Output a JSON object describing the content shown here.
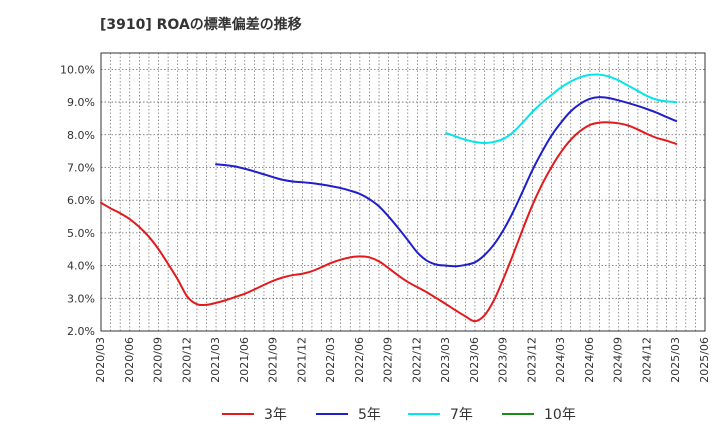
{
  "title": "[3910]  ROAの標準偏差の推移",
  "chart_data": {
    "type": "line",
    "title": "[3910]  ROAの標準偏差の推移",
    "xlabel": "",
    "ylabel": "",
    "ylim": [
      2.0,
      10.5
    ],
    "y_ticks": [
      "2.0%",
      "3.0%",
      "4.0%",
      "5.0%",
      "6.0%",
      "7.0%",
      "8.0%",
      "9.0%",
      "10.0%"
    ],
    "y_tick_values": [
      2,
      3,
      4,
      5,
      6,
      7,
      8,
      9,
      10
    ],
    "x_ticks": [
      "2020/03",
      "2020/06",
      "2020/09",
      "2020/12",
      "2021/03",
      "2021/06",
      "2021/09",
      "2021/12",
      "2022/03",
      "2022/06",
      "2022/09",
      "2022/12",
      "2023/03",
      "2023/06",
      "2023/09",
      "2023/12",
      "2024/03",
      "2024/06",
      "2024/09",
      "2024/12",
      "2025/03",
      "2025/06"
    ],
    "grid": true,
    "legend_position": "bottom",
    "series": [
      {
        "name": "3年",
        "color": "#e31a1c",
        "x": [
          "2020/03",
          "2020/04",
          "2020/05",
          "2020/06",
          "2020/07",
          "2020/08",
          "2020/09",
          "2020/10",
          "2020/11",
          "2020/12",
          "2021/01",
          "2021/02",
          "2021/03",
          "2021/04",
          "2021/05",
          "2021/06",
          "2021/07",
          "2021/08",
          "2021/09",
          "2021/10",
          "2021/11",
          "2021/12",
          "2022/01",
          "2022/02",
          "2022/03",
          "2022/04",
          "2022/05",
          "2022/06",
          "2022/07",
          "2022/08",
          "2022/09",
          "2022/10",
          "2022/11",
          "2022/12",
          "2023/01",
          "2023/02",
          "2023/03",
          "2023/04",
          "2023/05",
          "2023/06",
          "2023/07",
          "2023/08",
          "2023/09",
          "2023/10",
          "2023/11",
          "2023/12",
          "2024/01",
          "2024/02",
          "2024/03",
          "2024/04",
          "2024/05",
          "2024/06",
          "2024/07",
          "2024/08",
          "2024/09",
          "2024/10",
          "2024/11",
          "2024/12",
          "2025/01",
          "2025/02",
          "2025/03"
        ],
        "values": [
          5.92,
          5.75,
          5.6,
          5.42,
          5.18,
          4.88,
          4.5,
          4.05,
          3.58,
          3.05,
          2.82,
          2.8,
          2.86,
          2.94,
          3.04,
          3.14,
          3.27,
          3.41,
          3.54,
          3.64,
          3.71,
          3.75,
          3.83,
          3.95,
          4.08,
          4.18,
          4.25,
          4.28,
          4.25,
          4.13,
          3.92,
          3.7,
          3.5,
          3.34,
          3.18,
          3.0,
          2.82,
          2.63,
          2.45,
          2.3,
          2.48,
          2.95,
          3.62,
          4.35,
          5.12,
          5.85,
          6.48,
          7.02,
          7.48,
          7.85,
          8.12,
          8.3,
          8.37,
          8.38,
          8.35,
          8.28,
          8.16,
          8.02,
          7.9,
          7.82,
          7.72
        ]
      },
      {
        "name": "5年",
        "color": "#1f1fcc",
        "x": [
          "2021/03",
          "2021/04",
          "2021/05",
          "2021/06",
          "2021/07",
          "2021/08",
          "2021/09",
          "2021/10",
          "2021/11",
          "2021/12",
          "2022/01",
          "2022/02",
          "2022/03",
          "2022/04",
          "2022/05",
          "2022/06",
          "2022/07",
          "2022/08",
          "2022/09",
          "2022/10",
          "2022/11",
          "2022/12",
          "2023/01",
          "2023/02",
          "2023/03",
          "2023/04",
          "2023/05",
          "2023/06",
          "2023/07",
          "2023/08",
          "2023/09",
          "2023/10",
          "2023/11",
          "2023/12",
          "2024/01",
          "2024/02",
          "2024/03",
          "2024/04",
          "2024/05",
          "2024/06",
          "2024/07",
          "2024/08",
          "2024/09",
          "2024/10",
          "2024/11",
          "2024/12",
          "2025/01",
          "2025/02",
          "2025/03"
        ],
        "values": [
          7.1,
          7.07,
          7.03,
          6.96,
          6.88,
          6.79,
          6.7,
          6.62,
          6.57,
          6.55,
          6.52,
          6.48,
          6.43,
          6.37,
          6.29,
          6.19,
          6.03,
          5.81,
          5.5,
          5.15,
          4.78,
          4.4,
          4.15,
          4.03,
          4.0,
          3.98,
          4.02,
          4.1,
          4.32,
          4.65,
          5.1,
          5.65,
          6.28,
          6.92,
          7.48,
          7.98,
          8.38,
          8.72,
          8.95,
          9.1,
          9.15,
          9.12,
          9.05,
          8.97,
          8.88,
          8.78,
          8.67,
          8.54,
          8.42
        ]
      },
      {
        "name": "7年",
        "color": "#00e5ee",
        "x": [
          "2023/03",
          "2023/04",
          "2023/05",
          "2023/06",
          "2023/07",
          "2023/08",
          "2023/09",
          "2023/10",
          "2023/11",
          "2023/12",
          "2024/01",
          "2024/02",
          "2024/03",
          "2024/04",
          "2024/05",
          "2024/06",
          "2024/07",
          "2024/08",
          "2024/09",
          "2024/10",
          "2024/11",
          "2024/12",
          "2025/01",
          "2025/02",
          "2025/03"
        ],
        "values": [
          8.05,
          7.95,
          7.85,
          7.78,
          7.75,
          7.78,
          7.88,
          8.08,
          8.38,
          8.7,
          8.98,
          9.22,
          9.45,
          9.63,
          9.76,
          9.83,
          9.84,
          9.78,
          9.66,
          9.5,
          9.34,
          9.18,
          9.07,
          9.02,
          9.0
        ]
      },
      {
        "name": "10年",
        "color": "#1a8a1a",
        "x": [],
        "values": []
      }
    ]
  }
}
